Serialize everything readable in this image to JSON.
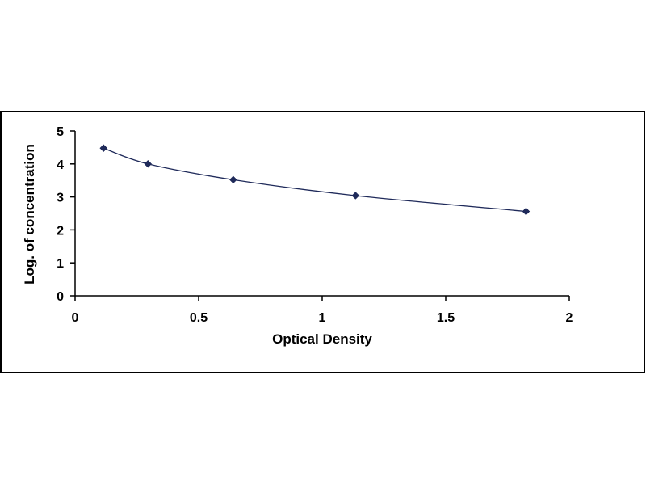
{
  "chart_data": {
    "type": "scatter",
    "title": "",
    "xlabel": "Optical Density",
    "ylabel": "Log. of concentration",
    "xlim": [
      0,
      2
    ],
    "ylim": [
      0,
      5
    ],
    "x_ticks": [
      0,
      0.5,
      1,
      1.5,
      2
    ],
    "x_tick_labels": [
      "0",
      "0.5",
      "1",
      "1.5",
      "2"
    ],
    "y_ticks": [
      0,
      1,
      2,
      3,
      4,
      5
    ],
    "y_tick_labels": [
      "0",
      "1",
      "2",
      "3",
      "4",
      "5"
    ],
    "grid": false,
    "legend": "none",
    "series": [
      {
        "marker": "diamond",
        "color": "#1f2a5a",
        "x": [
          0.115,
          0.295,
          0.64,
          1.135,
          1.825
        ],
        "y": [
          4.48,
          4.0,
          3.52,
          3.04,
          2.56
        ]
      }
    ],
    "trendline": {
      "type": "smooth",
      "color": "#1f2a5a"
    }
  }
}
